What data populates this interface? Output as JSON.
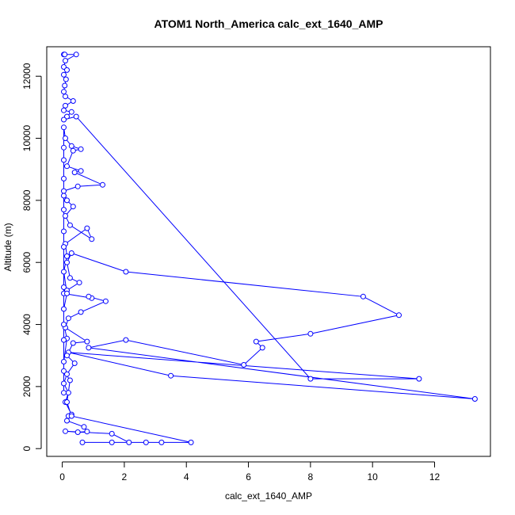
{
  "chart_data": {
    "type": "line",
    "title": "ATOM1 North_America calc_ext_1640_AMP",
    "xlabel": "calc_ext_1640_AMP",
    "ylabel": "Altitude (m)",
    "xlim": [
      -0.5,
      13.8
    ],
    "ylim": [
      -250,
      12950
    ],
    "xticks": [
      0,
      2,
      4,
      6,
      8,
      10,
      12
    ],
    "yticks": [
      0,
      2000,
      4000,
      6000,
      8000,
      10000,
      12000
    ],
    "grid": false,
    "legend": "none",
    "line_color": "#0000ff",
    "marker": "open-circle",
    "points": [
      {
        "x": 0.05,
        "y": 12700
      },
      {
        "x": 0.08,
        "y": 12700
      },
      {
        "x": 0.45,
        "y": 12700
      },
      {
        "x": 0.1,
        "y": 12500
      },
      {
        "x": 0.05,
        "y": 12300
      },
      {
        "x": 0.15,
        "y": 12200
      },
      {
        "x": 0.05,
        "y": 12050
      },
      {
        "x": 0.12,
        "y": 11900
      },
      {
        "x": 0.08,
        "y": 11700
      },
      {
        "x": 0.05,
        "y": 11500
      },
      {
        "x": 0.1,
        "y": 11350
      },
      {
        "x": 0.35,
        "y": 11200
      },
      {
        "x": 0.1,
        "y": 11050
      },
      {
        "x": 0.05,
        "y": 10900
      },
      {
        "x": 0.3,
        "y": 10850
      },
      {
        "x": 0.15,
        "y": 10700
      },
      {
        "x": 0.05,
        "y": 10600
      },
      {
        "x": 0.45,
        "y": 10700
      },
      {
        "x": 8.0,
        "y": 2250
      },
      {
        "x": 11.5,
        "y": 2250
      },
      {
        "x": 0.2,
        "y": 3100
      },
      {
        "x": 3.5,
        "y": 2350
      },
      {
        "x": 13.3,
        "y": 1600
      },
      {
        "x": 0.85,
        "y": 3250
      },
      {
        "x": 2.05,
        "y": 3500
      },
      {
        "x": 5.85,
        "y": 2700
      },
      {
        "x": 6.45,
        "y": 3250
      },
      {
        "x": 6.25,
        "y": 3450
      },
      {
        "x": 8.0,
        "y": 3700
      },
      {
        "x": 10.85,
        "y": 4300
      },
      {
        "x": 9.7,
        "y": 4900
      },
      {
        "x": 2.05,
        "y": 5700
      },
      {
        "x": 0.3,
        "y": 6300
      },
      {
        "x": 0.15,
        "y": 6000
      },
      {
        "x": 0.25,
        "y": 5500
      },
      {
        "x": 0.55,
        "y": 5350
      },
      {
        "x": 0.15,
        "y": 5100
      },
      {
        "x": 0.05,
        "y": 5000
      },
      {
        "x": 0.95,
        "y": 4850
      },
      {
        "x": 0.85,
        "y": 4900
      },
      {
        "x": 1.4,
        "y": 4750
      },
      {
        "x": 0.6,
        "y": 4400
      },
      {
        "x": 0.2,
        "y": 4200
      },
      {
        "x": 0.1,
        "y": 3900
      },
      {
        "x": 0.8,
        "y": 3450
      },
      {
        "x": 0.35,
        "y": 3400
      },
      {
        "x": 0.15,
        "y": 3000
      },
      {
        "x": 0.4,
        "y": 2750
      },
      {
        "x": 0.15,
        "y": 2400
      },
      {
        "x": 0.05,
        "y": 2100
      },
      {
        "x": 0.2,
        "y": 1800
      },
      {
        "x": 0.1,
        "y": 1500
      },
      {
        "x": 0.3,
        "y": 1100
      },
      {
        "x": 0.2,
        "y": 1050
      },
      {
        "x": 0.15,
        "y": 900
      },
      {
        "x": 0.7,
        "y": 700
      },
      {
        "x": 0.8,
        "y": 550
      },
      {
        "x": 0.5,
        "y": 530
      },
      {
        "x": 0.1,
        "y": 560
      },
      {
        "x": 1.6,
        "y": 480
      },
      {
        "x": 2.15,
        "y": 200
      },
      {
        "x": 1.6,
        "y": 200
      },
      {
        "x": 0.65,
        "y": 200
      },
      {
        "x": 2.7,
        "y": 200
      },
      {
        "x": 3.2,
        "y": 200
      },
      {
        "x": 4.15,
        "y": 200
      },
      {
        "x": 0.3,
        "y": 1050
      },
      {
        "x": 0.15,
        "y": 1500
      },
      {
        "x": 0.25,
        "y": 2200
      },
      {
        "x": 0.05,
        "y": 2500
      },
      {
        "x": 0.05,
        "y": 2800
      },
      {
        "x": 0.15,
        "y": 3550
      },
      {
        "x": 0.05,
        "y": 4000
      },
      {
        "x": 0.05,
        "y": 4500
      },
      {
        "x": 0.15,
        "y": 5000
      },
      {
        "x": 0.05,
        "y": 5700
      },
      {
        "x": 0.15,
        "y": 6200
      },
      {
        "x": 0.1,
        "y": 6600
      },
      {
        "x": 0.8,
        "y": 7100
      },
      {
        "x": 0.95,
        "y": 6750
      },
      {
        "x": 0.25,
        "y": 7200
      },
      {
        "x": 0.1,
        "y": 7500
      },
      {
        "x": 0.35,
        "y": 7800
      },
      {
        "x": 0.15,
        "y": 8000
      },
      {
        "x": 0.05,
        "y": 8300
      },
      {
        "x": 0.5,
        "y": 8450
      },
      {
        "x": 1.3,
        "y": 8500
      },
      {
        "x": 0.4,
        "y": 8900
      },
      {
        "x": 0.6,
        "y": 8950
      },
      {
        "x": 0.15,
        "y": 9100
      },
      {
        "x": 0.35,
        "y": 9600
      },
      {
        "x": 0.6,
        "y": 9650
      },
      {
        "x": 0.3,
        "y": 9750
      },
      {
        "x": 0.1,
        "y": 10000
      },
      {
        "x": 0.05,
        "y": 10350
      },
      {
        "x": 0.05,
        "y": 9700
      },
      {
        "x": 0.05,
        "y": 9300
      },
      {
        "x": 0.05,
        "y": 8700
      },
      {
        "x": 0.05,
        "y": 8150
      },
      {
        "x": 0.05,
        "y": 7700
      },
      {
        "x": 0.05,
        "y": 7000
      },
      {
        "x": 0.05,
        "y": 6500
      },
      {
        "x": 0.05,
        "y": 5200
      },
      {
        "x": 0.05,
        "y": 3500
      },
      {
        "x": 0.05,
        "y": 1800
      }
    ]
  }
}
